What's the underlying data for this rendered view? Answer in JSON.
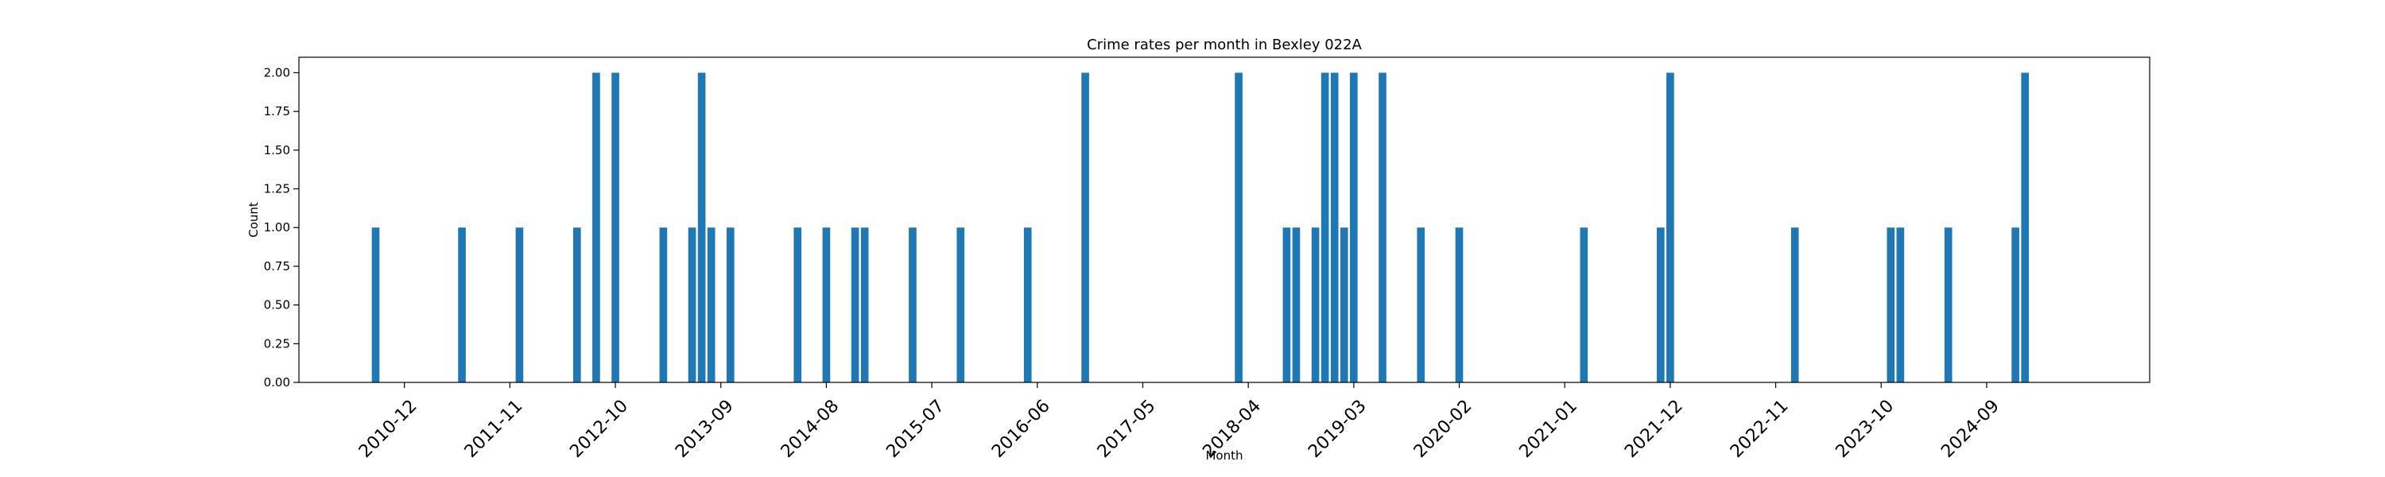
{
  "chart_data": {
    "type": "bar",
    "title": "Crime rates per month in Bexley 022A",
    "xlabel": "Month",
    "ylabel": "Count",
    "ylim": [
      0,
      2.1
    ],
    "xlim": [
      "2010-01",
      "2026-02"
    ],
    "grid": false,
    "color": "#1f77b4",
    "x_ticks": [
      "2010-12",
      "2011-11",
      "2012-10",
      "2013-09",
      "2014-08",
      "2015-07",
      "2016-06",
      "2017-05",
      "2018-04",
      "2019-03",
      "2020-02",
      "2021-01",
      "2021-12",
      "2022-11",
      "2023-10",
      "2024-09"
    ],
    "y_ticks": [
      "0.00",
      "0.25",
      "0.50",
      "0.75",
      "1.00",
      "1.25",
      "1.50",
      "1.75",
      "2.00"
    ],
    "categories": [
      "2010-09",
      "2011-06",
      "2011-12",
      "2012-06",
      "2012-08",
      "2012-10",
      "2013-03",
      "2013-06",
      "2013-07",
      "2013-08",
      "2013-10",
      "2014-05",
      "2014-08",
      "2014-11",
      "2014-12",
      "2015-05",
      "2015-10",
      "2016-05",
      "2016-11",
      "2018-03",
      "2018-08",
      "2018-09",
      "2018-11",
      "2018-12",
      "2019-01",
      "2019-02",
      "2019-03",
      "2019-06",
      "2019-10",
      "2020-02",
      "2021-03",
      "2021-11",
      "2021-12",
      "2023-01",
      "2023-11",
      "2023-12",
      "2024-05",
      "2024-12",
      "2025-01"
    ],
    "values": [
      1,
      1,
      1,
      1,
      2,
      2,
      1,
      1,
      2,
      1,
      1,
      1,
      1,
      1,
      1,
      1,
      1,
      1,
      2,
      2,
      1,
      1,
      1,
      2,
      2,
      1,
      2,
      2,
      1,
      1,
      1,
      1,
      2,
      1,
      1,
      1,
      1,
      1,
      2
    ]
  }
}
